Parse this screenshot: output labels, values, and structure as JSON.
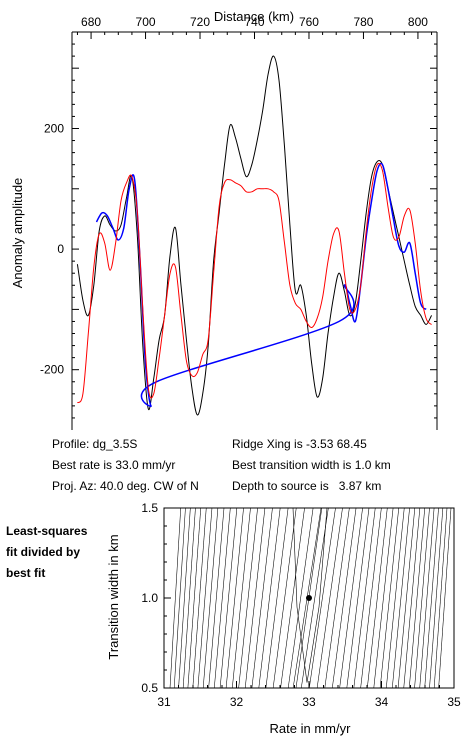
{
  "chart_data": [
    {
      "type": "line",
      "title": "",
      "xlabel": "Distance (km)",
      "ylabel": "Anomaly amplitude",
      "x_axis_position": "top",
      "xlim": [
        673,
        807
      ],
      "ylim": [
        -300,
        360
      ],
      "x_ticks": [
        680,
        700,
        720,
        740,
        760,
        780,
        800
      ],
      "y_ticks": [
        -200,
        0,
        200
      ],
      "grid": false,
      "series": [
        {
          "color": "#000000",
          "x": [
            675,
            677,
            679,
            681,
            683,
            685,
            687,
            689,
            691,
            693,
            695,
            697,
            699,
            701,
            703,
            705,
            707,
            709,
            711,
            713,
            715,
            717,
            719,
            721,
            723,
            725,
            727,
            729,
            731,
            733,
            735,
            737,
            739,
            741,
            743,
            745,
            747,
            749,
            751,
            753,
            755,
            757,
            759,
            761,
            763,
            765,
            767,
            769,
            771,
            773,
            775,
            777,
            779,
            781,
            783,
            785,
            787,
            789,
            791,
            793,
            795,
            797,
            799,
            801,
            803,
            805
          ],
          "y": [
            -25,
            -85,
            -110,
            -60,
            30,
            55,
            40,
            30,
            40,
            85,
            120,
            20,
            -160,
            -265,
            -215,
            -150,
            -110,
            -10,
            35,
            -60,
            -150,
            -230,
            -275,
            -240,
            -160,
            -20,
            60,
            140,
            205,
            185,
            150,
            120,
            140,
            180,
            230,
            290,
            320,
            280,
            170,
            40,
            -70,
            -60,
            -110,
            -190,
            -245,
            -215,
            -140,
            -80,
            -40,
            -70,
            -110,
            -90,
            -20,
            60,
            120,
            145,
            140,
            100,
            60,
            20,
            -20,
            -60,
            -95,
            -110,
            -125,
            -110
          ]
        },
        {
          "color": "#0000ff",
          "x": [
            682,
            684,
            686,
            688,
            690,
            692,
            694,
            696,
            698,
            700,
            702,
            704,
            771,
            773,
            775,
            777,
            779,
            781,
            783,
            785,
            787,
            789,
            791,
            793,
            795,
            797,
            799,
            801,
            803
          ],
          "y": [
            45,
            60,
            55,
            35,
            15,
            35,
            100,
            115,
            -20,
            -190,
            -260,
            -220,
            -120,
            -60,
            -90,
            -120,
            -60,
            20,
            80,
            130,
            140,
            100,
            50,
            5,
            -5,
            10,
            -40,
            -90,
            -100
          ]
        },
        {
          "color": "#ff0000",
          "x": [
            675,
            677,
            679,
            681,
            683,
            685,
            687,
            689,
            691,
            693,
            695,
            697,
            699,
            701,
            703,
            705,
            707,
            709,
            711,
            713,
            715,
            717,
            719,
            721,
            723,
            725,
            727,
            729,
            731,
            733,
            735,
            737,
            739,
            741,
            743,
            745,
            747,
            749,
            751,
            753,
            755,
            757,
            759,
            761,
            763,
            765,
            767,
            769,
            771,
            773,
            775,
            777,
            779,
            781,
            783,
            785,
            787,
            789,
            791,
            793,
            795,
            797,
            799,
            801,
            803,
            805
          ],
          "y": [
            -255,
            -240,
            -140,
            -30,
            25,
            10,
            -35,
            10,
            80,
            110,
            120,
            60,
            -100,
            -230,
            -240,
            -180,
            -110,
            -40,
            -30,
            -110,
            -185,
            -210,
            -205,
            -175,
            -150,
            -40,
            70,
            110,
            115,
            110,
            105,
            95,
            95,
            100,
            100,
            100,
            95,
            80,
            10,
            -60,
            -90,
            -100,
            -120,
            -130,
            -115,
            -80,
            -20,
            25,
            30,
            -40,
            -100,
            -100,
            -60,
            30,
            100,
            140,
            130,
            70,
            20,
            20,
            55,
            65,
            10,
            -70,
            -115,
            -125
          ]
        }
      ]
    },
    {
      "type": "contour",
      "title": "",
      "xlabel": "Rate in mm/yr",
      "ylabel": "Transition width in km",
      "xlim": [
        31,
        35
      ],
      "ylim": [
        0.5,
        1.5
      ],
      "x_ticks": [
        31,
        32,
        33,
        34,
        35
      ],
      "y_ticks": [
        0.5,
        1.0,
        1.5
      ],
      "best_fit_point": {
        "x": 33.0,
        "y": 1.0
      },
      "grid": false
    }
  ],
  "info": {
    "profile": "Profile: dg_3.5S",
    "best_rate": "Best rate is 33.0 mm/yr",
    "proj_az": "Proj. Az: 40.0 deg. CW of N",
    "ridge_xing": "Ridge Xing is -3.53 68.45",
    "best_transition": "Best transition width is 1.0 km",
    "depth": "Depth to source is   3.87 km"
  },
  "side_label": {
    "line1": "Least-squares",
    "line2": "fit divided by",
    "line3": "best fit"
  }
}
